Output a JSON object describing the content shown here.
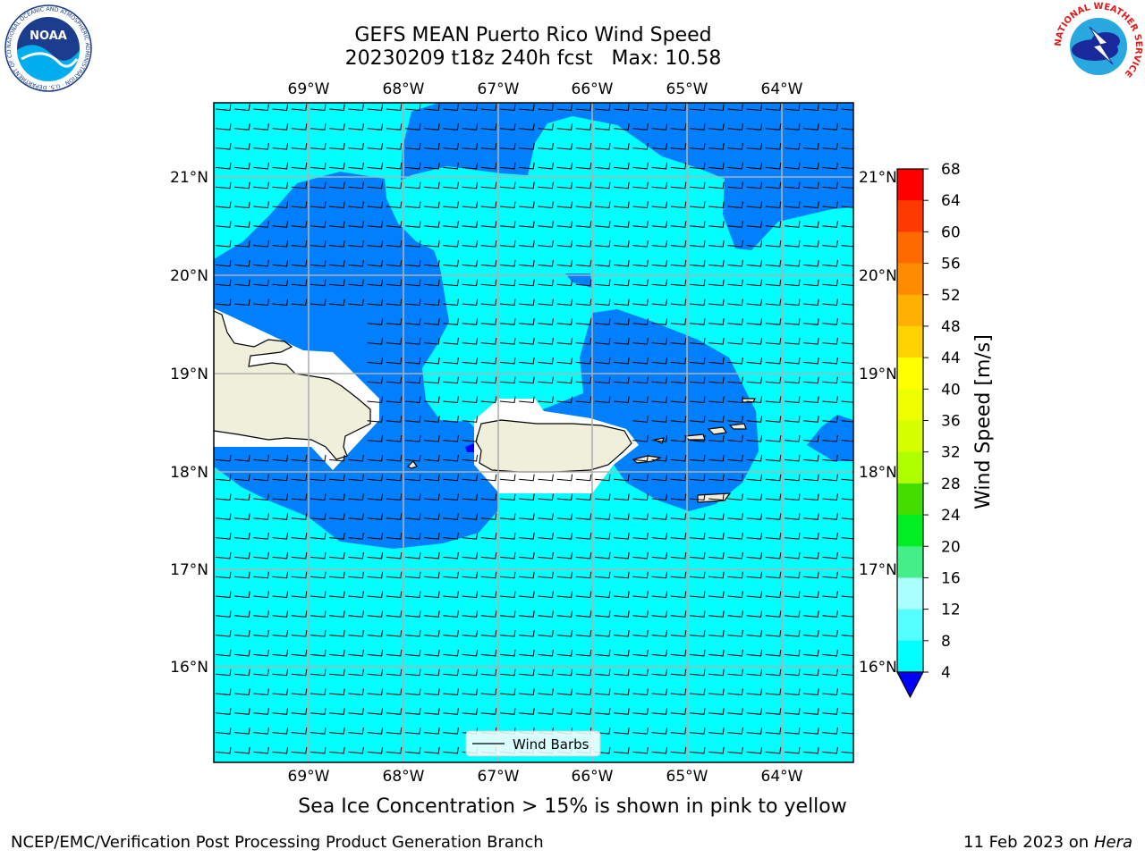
{
  "title": {
    "line1": "GEFS MEAN Puerto Rico Wind Speed",
    "line2": "20230209 t18z 240h fcst   Max: 10.58"
  },
  "map": {
    "lon_labels": [
      "69°W",
      "68°W",
      "67°W",
      "66°W",
      "65°W",
      "64°W"
    ],
    "lat_labels": [
      "21°N",
      "20°N",
      "19°N",
      "18°N",
      "17°N",
      "16°N"
    ],
    "legend_label": "Wind Barbs",
    "colors": {
      "ocean_light": "#00ffff",
      "ocean_dark": "#0080ff",
      "land": "#efefdc",
      "grid": "#b0b0b0"
    }
  },
  "colorbar": {
    "label": "Wind Speed [m/s]",
    "ticks": [
      "68",
      "64",
      "60",
      "56",
      "52",
      "48",
      "44",
      "40",
      "36",
      "32",
      "28",
      "24",
      "20",
      "16",
      "12",
      "8",
      "4"
    ],
    "colors": [
      "#ff0000",
      "#ff3a00",
      "#ff6a00",
      "#ff8c00",
      "#ffb000",
      "#ffd300",
      "#ffff00",
      "#eeff00",
      "#d6ff00",
      "#b0ff00",
      "#44dd00",
      "#00ee22",
      "#44ee88",
      "#aaffff",
      "#55ffff",
      "#00ffff",
      "#0080ff"
    ],
    "under_color": "#0000ff"
  },
  "caption": "Sea Ice Concentration > 15% is shown in pink to yellow",
  "footer": {
    "left": "NCEP/EMC/Verification Post Processing Product Generation Branch",
    "right_date": "11 Feb 2023 on",
    "right_host": "Hera"
  },
  "logos": {
    "noaa": "NOAA",
    "noaa_ring": "NATIONAL OCEANIC AND ATMOSPHERIC ADMINISTRATION · U.S. DEPARTMENT OF COMMERCE",
    "nws_ring": "NATIONAL WEATHER SERVICE"
  }
}
